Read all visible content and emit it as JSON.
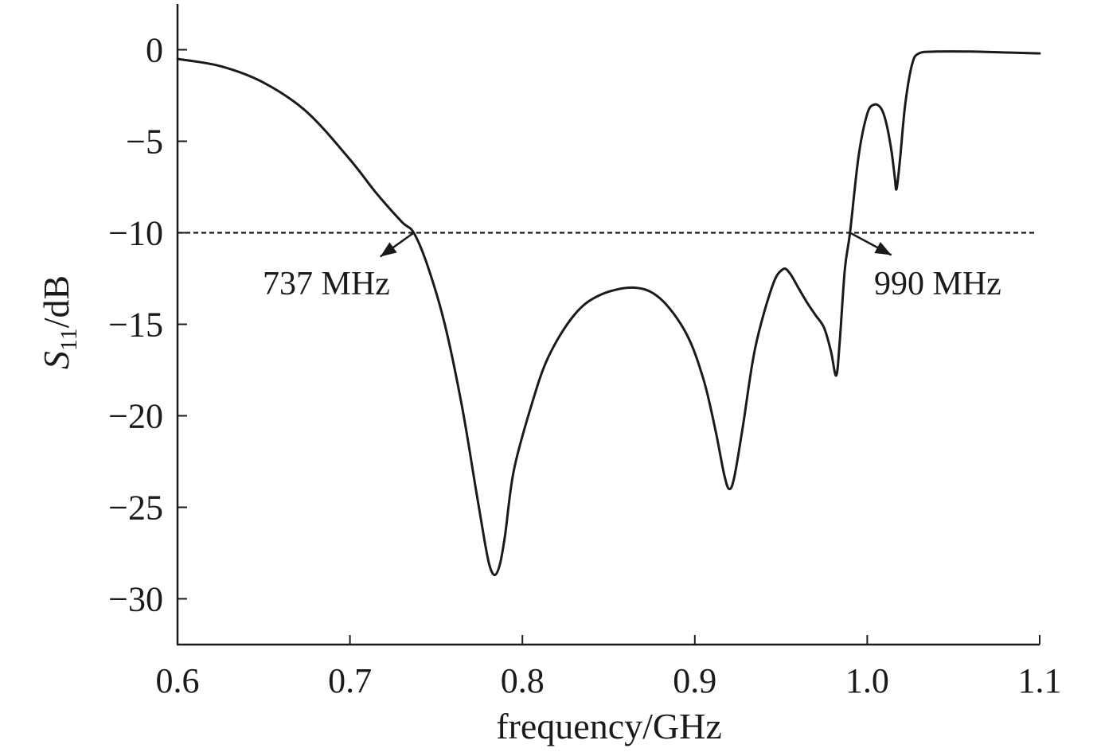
{
  "chart_data": {
    "type": "line",
    "title": "",
    "xlabel": "frequency/GHz",
    "ylabel": {
      "main": "S",
      "sub": "11",
      "rest": "/dB"
    },
    "xlim": [
      0.6,
      1.1
    ],
    "ylim": [
      -32.5,
      2.5
    ],
    "xticks": [
      0.6,
      0.7,
      0.8,
      0.9,
      1.0,
      1.1
    ],
    "xtick_labels": [
      "0.6",
      "0.7",
      "0.8",
      "0.9",
      "1.0",
      "1.1"
    ],
    "yticks": [
      0,
      -5,
      -10,
      -15,
      -20,
      -25,
      -30
    ],
    "ytick_labels": [
      "0",
      "−5",
      "−10",
      "−15",
      "−20",
      "−25",
      "−30"
    ],
    "grid": false,
    "legend": "none",
    "series": [
      {
        "style": "solid",
        "color": "#1a1a1a",
        "x": [
          0.6,
          0.625,
          0.65,
          0.675,
          0.7,
          0.715,
          0.73,
          0.737,
          0.745,
          0.755,
          0.765,
          0.773,
          0.778,
          0.781,
          0.784,
          0.787,
          0.79,
          0.795,
          0.805,
          0.815,
          0.83,
          0.845,
          0.865,
          0.88,
          0.895,
          0.905,
          0.912,
          0.917,
          0.92,
          0.923,
          0.928,
          0.935,
          0.945,
          0.951,
          0.955,
          0.96,
          0.965,
          0.97,
          0.975,
          0.979,
          0.982,
          0.984,
          0.987,
          0.99,
          0.995,
          1.0,
          1.004,
          1.008,
          1.011,
          1.014,
          1.016,
          1.017,
          1.019,
          1.022,
          1.026,
          1.03,
          1.04,
          1.06,
          1.08,
          1.1
        ],
        "y": [
          -0.5,
          -0.9,
          -1.8,
          -3.4,
          -6.0,
          -7.8,
          -9.4,
          -10.0,
          -11.8,
          -15.0,
          -19.5,
          -24.0,
          -26.8,
          -28.2,
          -28.7,
          -28.1,
          -26.5,
          -23.0,
          -19.5,
          -16.8,
          -14.5,
          -13.4,
          -13.0,
          -13.6,
          -15.5,
          -18.0,
          -20.8,
          -23.2,
          -24.0,
          -23.3,
          -20.5,
          -16.3,
          -12.9,
          -12.0,
          -12.2,
          -13.0,
          -13.8,
          -14.5,
          -15.2,
          -16.5,
          -17.8,
          -16.0,
          -12.0,
          -10.0,
          -5.8,
          -3.5,
          -3.0,
          -3.2,
          -4.0,
          -5.5,
          -7.0,
          -7.6,
          -6.0,
          -3.0,
          -0.8,
          -0.2,
          -0.1,
          -0.1,
          -0.15,
          -0.2
        ]
      }
    ],
    "reference_line": {
      "y": -10,
      "style": "dashed",
      "color": "#1a1a1a"
    },
    "annotations": [
      {
        "text": "737 MHz",
        "x": 0.737,
        "y": -10
      },
      {
        "text": "990 MHz",
        "x": 0.99,
        "y": -10
      }
    ]
  }
}
